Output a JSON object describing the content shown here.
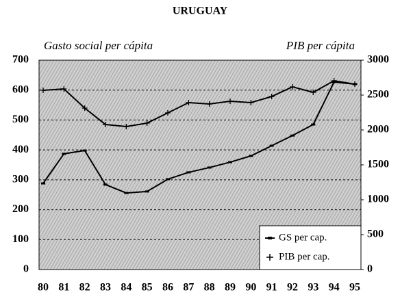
{
  "chart_data": {
    "type": "line",
    "title": "URUGUAY",
    "y_label": "Gasto social per cápita",
    "y2_label": "PIB per cápita",
    "categories": [
      "80",
      "81",
      "82",
      "83",
      "84",
      "85",
      "86",
      "87",
      "88",
      "89",
      "90",
      "91",
      "92",
      "93",
      "94",
      "95"
    ],
    "series": [
      {
        "name": "GS per cap.",
        "color": "#000000",
        "marker": "dash",
        "values": [
          288,
          387,
          398,
          284,
          256,
          261,
          302,
          325,
          341,
          359,
          380,
          414,
          448,
          485,
          627,
          620
        ]
      },
      {
        "name": "PIB per cap.",
        "color": "#000000",
        "marker": "plus",
        "axis": "y2",
        "values": [
          2569,
          2588,
          2314,
          2078,
          2049,
          2098,
          2245,
          2392,
          2373,
          2412,
          2392,
          2480,
          2618,
          2539,
          2706,
          2657
        ]
      }
    ],
    "ylim": [
      0,
      700
    ],
    "yticks": [
      0,
      100,
      200,
      300,
      400,
      500,
      600,
      700
    ],
    "y2lim": [
      0,
      3000
    ],
    "y2ticks": [
      0,
      500,
      1000,
      1500,
      2000,
      2500,
      3000
    ],
    "grid": true,
    "legend": "lower right"
  }
}
